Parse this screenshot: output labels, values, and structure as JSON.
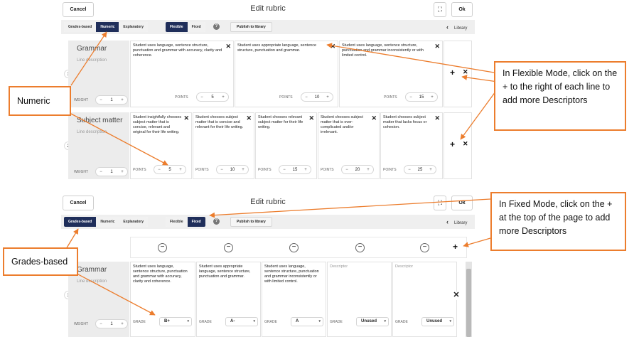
{
  "screen1": {
    "cancel": "Cancel",
    "title": "Edit rubric",
    "expand_glyph": "⛶",
    "ok": "Ok",
    "modes": [
      "Grades-based",
      "Numeric",
      "Explanatory"
    ],
    "active_mode": "Numeric",
    "layouts": [
      "Flexible",
      "Fixed"
    ],
    "active_layout": "Flexible",
    "help": "?",
    "publish": "Publish to library",
    "library": "Library",
    "library_glyph": "‹",
    "rows": [
      {
        "num": "1",
        "name": "Grammar",
        "line_desc": "Line description",
        "weight_label": "WEIGHT",
        "weight": "1",
        "descriptors": [
          {
            "text": "Student uses language, sentence structure, punctuation and grammar with accuracy, clarity and coherence.",
            "points_label": "POINTS",
            "points": "5"
          },
          {
            "text": "Student uses appropriate language, sentence structure, punctuation and grammar.",
            "points_label": "POINTS",
            "points": "10"
          },
          {
            "text": "Student uses language, sentence structure, punctuation and grammar inconsistently or with limited control.",
            "points_label": "POINTS",
            "points": "15"
          }
        ]
      },
      {
        "num": "2",
        "name": "Subject matter",
        "line_desc": "Line description",
        "weight_label": "WEIGHT",
        "weight": "1",
        "descriptors": [
          {
            "text": "Student insightfully chooses subject matter that is concise, relevant and original for their life writing.",
            "points_label": "POINTS",
            "points": "5"
          },
          {
            "text": "Student chooses subject matter that is concise and relevant for their life writing.",
            "points_label": "POINTS",
            "points": "10"
          },
          {
            "text": "Student chooses relevant subject matter for their life writing.",
            "points_label": "POINTS",
            "points": "15"
          },
          {
            "text": "Student chooses subject matter that is over-complicated and/or irrelevant.",
            "points_label": "POINTS",
            "points": "20"
          },
          {
            "text": "Student chooses subject matter that lacks focus or cohesion.",
            "points_label": "POINTS",
            "points": "25"
          }
        ]
      }
    ]
  },
  "screen2": {
    "cancel": "Cancel",
    "title": "Edit rubric",
    "expand_glyph": "⛶",
    "ok": "Ok",
    "modes": [
      "Grades-based",
      "Numeric",
      "Explanatory"
    ],
    "active_mode": "Grades-based",
    "layouts": [
      "Flexible",
      "Fixed"
    ],
    "active_layout": "Fixed",
    "help": "?",
    "publish": "Publish to library",
    "library": "Library",
    "library_glyph": "‹",
    "row": {
      "num": "1",
      "name": "Grammar",
      "line_desc": "Line description",
      "weight_label": "WEIGHT",
      "weight": "1",
      "descriptors": [
        {
          "text": "Student uses language, sentence structure, punctuation and grammar with accuracy, clarity and coherence.",
          "grade_label": "GRADE",
          "grade": "B+"
        },
        {
          "text": "Student uses appropriate language, sentence structure, punctuation and grammar.",
          "grade_label": "GRADE",
          "grade": "A-"
        },
        {
          "text": "Student uses language, sentence structure, punctuation and grammar inconsistently or with limited control.",
          "grade_label": "GRADE",
          "grade": "A"
        },
        {
          "text": "Descriptor",
          "grade_label": "GRADE",
          "grade": "Unused"
        },
        {
          "text": "Descriptor",
          "grade_label": "GRADE",
          "grade": "Unused"
        }
      ]
    }
  },
  "glyphs": {
    "minus": "−",
    "plus": "+",
    "close": "✕",
    "caret": "▾"
  },
  "callouts": {
    "numeric": "Numeric",
    "flexible": "In Flexible Mode, click on the + to the right of each line to add more Descriptors",
    "fixed": "In Fixed Mode, click on the + at the top of the page to add more Descriptors",
    "grades": "Grades-based"
  },
  "colors": {
    "active_tab": "#1f2e5a",
    "callout_border": "#ec7d2d",
    "toolbar_bg": "#efefef"
  }
}
